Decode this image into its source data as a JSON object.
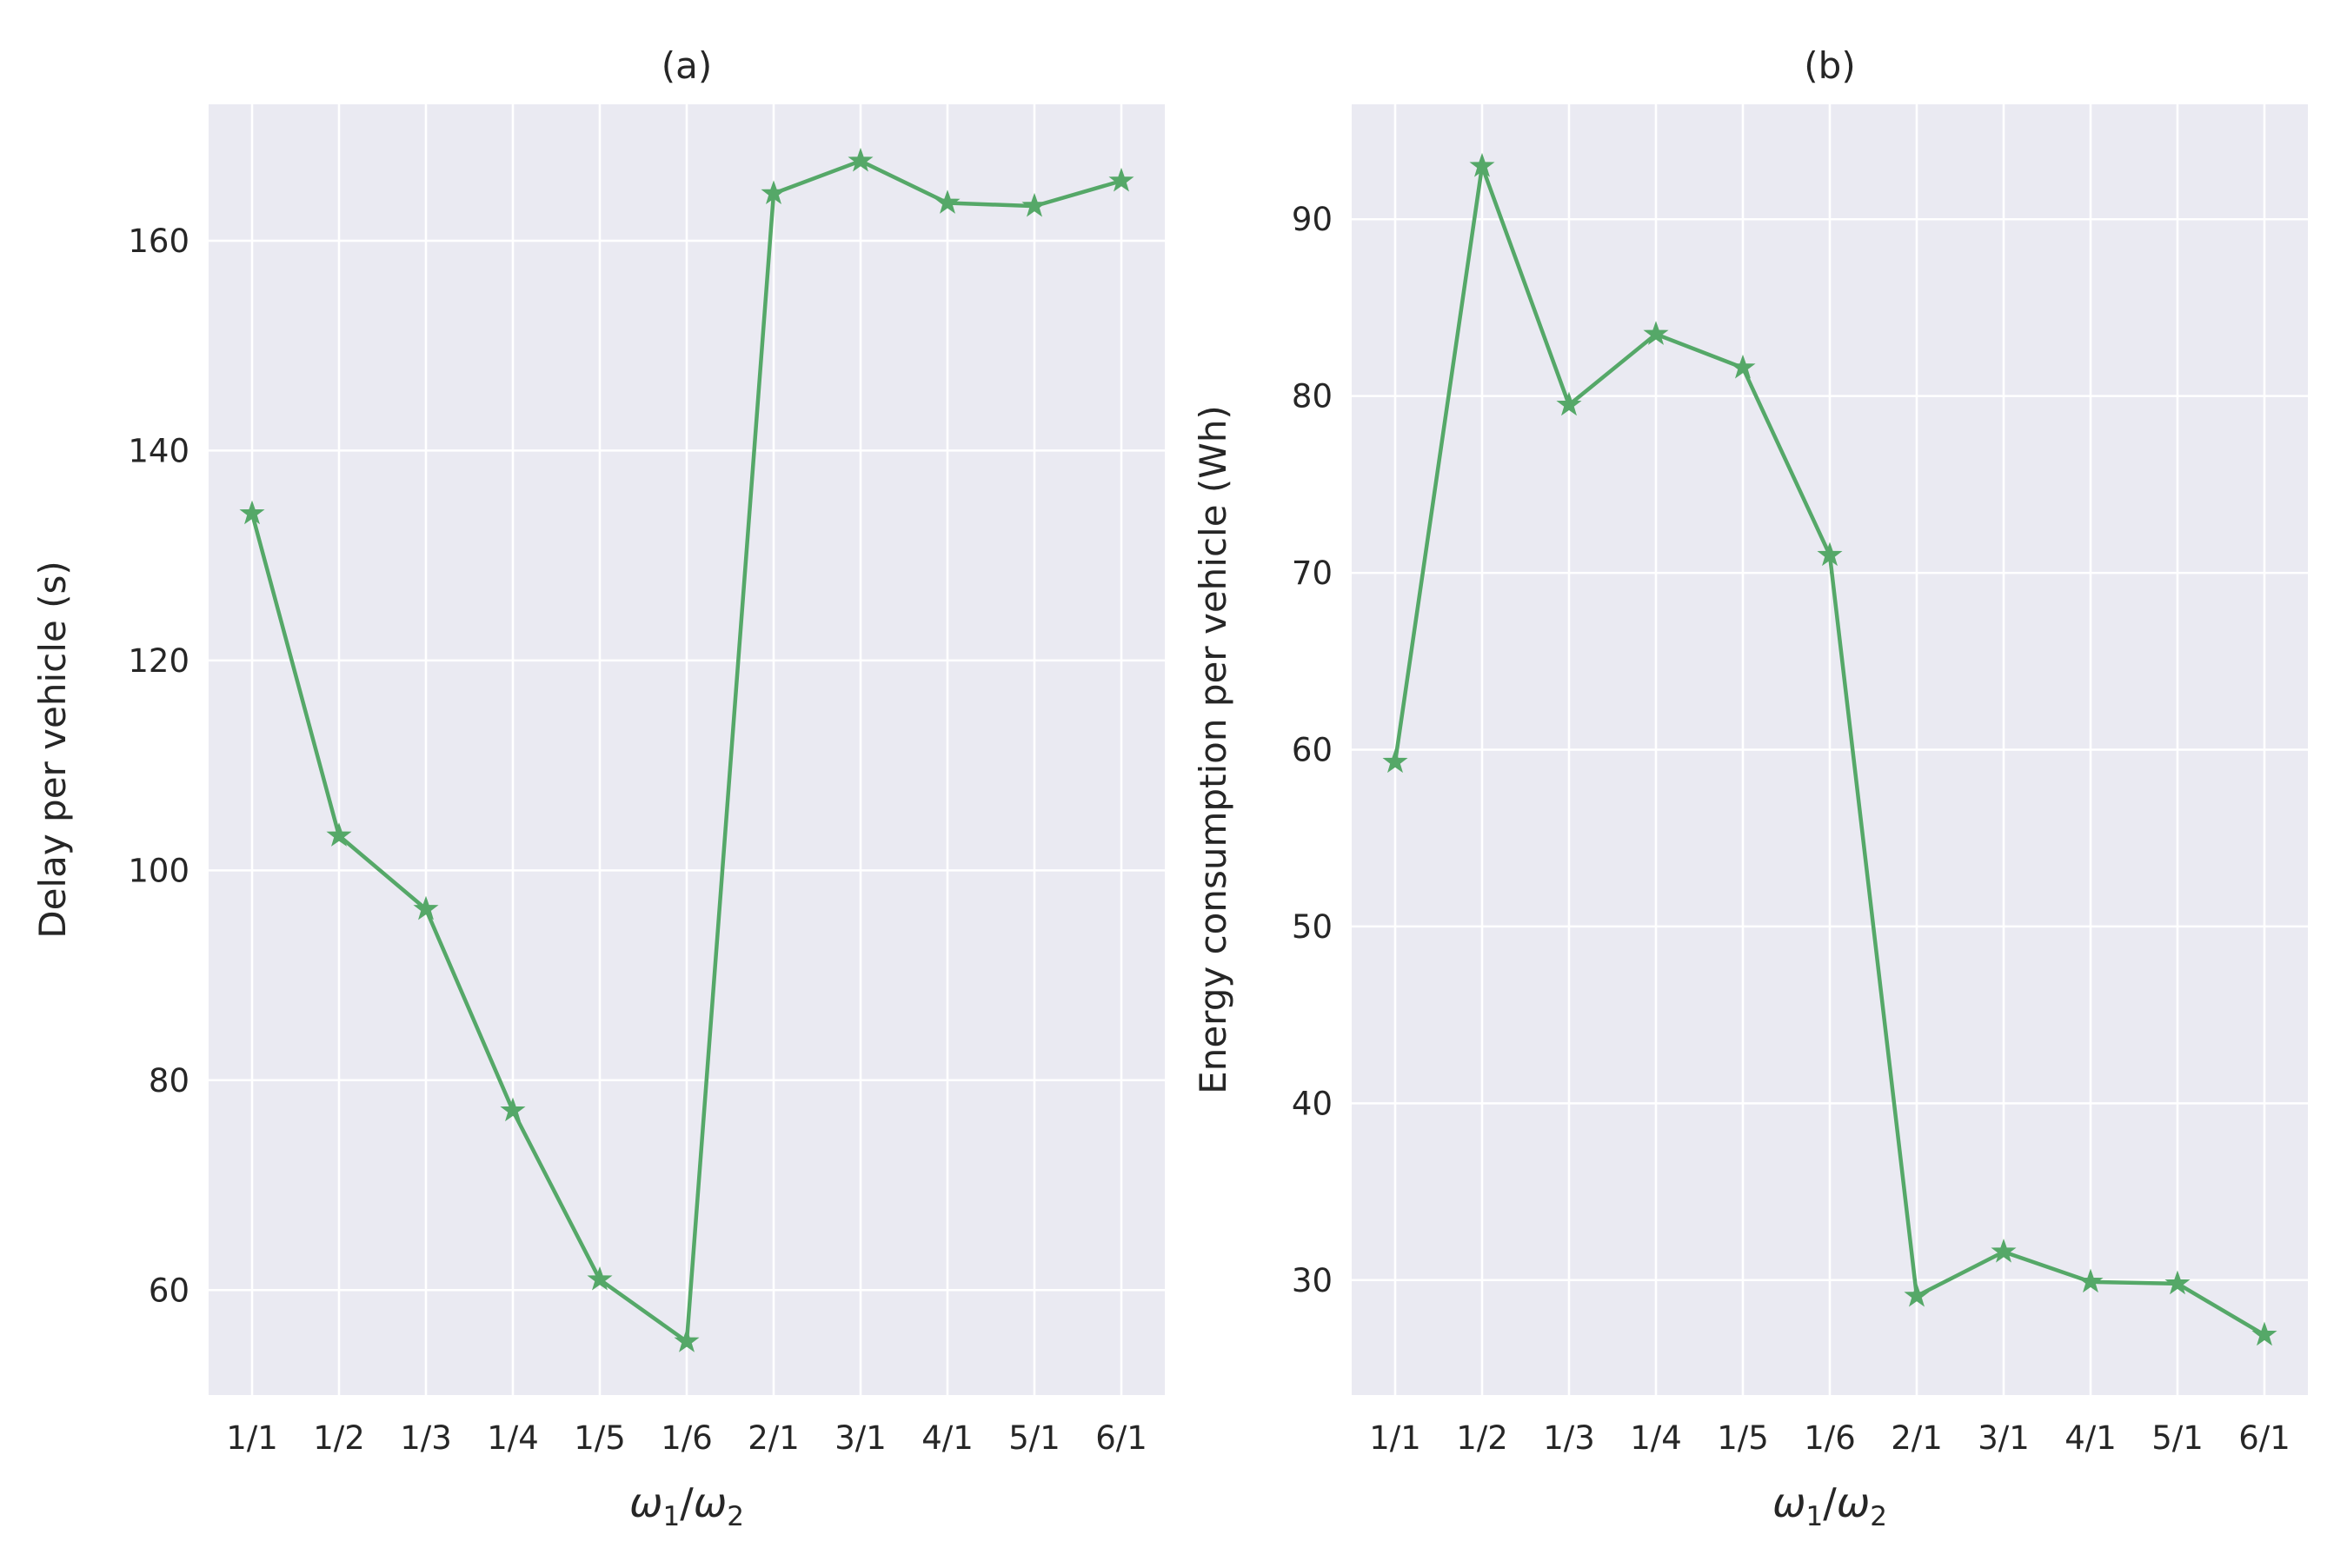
{
  "chart_data": [
    {
      "type": "line",
      "title": "(a)",
      "xlabel": {
        "base": "ω",
        "sub1": "1",
        "slash": "/",
        "sub2": "2"
      },
      "ylabel": "Delay per vehicle (s)",
      "categories": [
        "1/1",
        "1/2",
        "1/3",
        "1/4",
        "1/5",
        "1/6",
        "2/1",
        "3/1",
        "4/1",
        "5/1",
        "6/1"
      ],
      "ylim": [
        50,
        173
      ],
      "yticks": [
        60,
        80,
        100,
        120,
        140,
        160
      ],
      "grid": true,
      "series": [
        {
          "values": [
            134,
            103.3,
            96.3,
            77.1,
            61.0,
            55.1,
            164.5,
            167.6,
            163.6,
            163.3,
            165.7
          ],
          "color": "#55a868",
          "marker": "star"
        }
      ]
    },
    {
      "type": "line",
      "title": "(b)",
      "xlabel": {
        "base": "ω",
        "sub1": "1",
        "slash": "/",
        "sub2": "2"
      },
      "ylabel": "Energy consumption per vehicle (Wh)",
      "categories": [
        "1/1",
        "1/2",
        "1/3",
        "1/4",
        "1/5",
        "1/6",
        "2/1",
        "3/1",
        "4/1",
        "5/1",
        "6/1"
      ],
      "ylim": [
        23.5,
        96.5
      ],
      "yticks": [
        30,
        40,
        50,
        60,
        70,
        80,
        90
      ],
      "grid": true,
      "series": [
        {
          "values": [
            59.3,
            93.0,
            79.5,
            83.5,
            81.6,
            71.0,
            29.1,
            31.6,
            29.9,
            29.8,
            26.9
          ],
          "color": "#55a868",
          "marker": "star"
        }
      ]
    }
  ],
  "colors": {
    "axes_background": "#eaeaf2",
    "grid": "#ffffff",
    "text": "#262626",
    "series": "#55a868"
  }
}
